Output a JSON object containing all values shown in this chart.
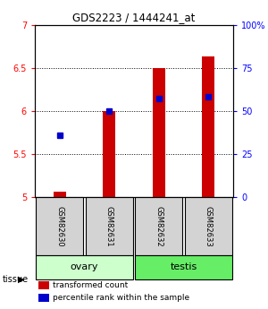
{
  "title": "GDS2223 / 1444241_at",
  "samples": [
    "GSM82630",
    "GSM82631",
    "GSM82632",
    "GSM82633"
  ],
  "red_bar_values": [
    5.07,
    6.0,
    6.5,
    6.63
  ],
  "blue_square_values": [
    5.72,
    6.0,
    6.15,
    6.17
  ],
  "y_min": 5.0,
  "y_max": 7.0,
  "y_ticks": [
    5.0,
    5.5,
    6.0,
    6.5,
    7.0
  ],
  "right_y_ticks": [
    0,
    25,
    50,
    75,
    100
  ],
  "bar_color": "#cc0000",
  "square_color": "#0000cc",
  "background_color": "#ffffff",
  "ovary_color": "#ccffcc",
  "testis_color": "#66ee66",
  "sample_box_color": "#d3d3d3",
  "bar_width": 0.25
}
